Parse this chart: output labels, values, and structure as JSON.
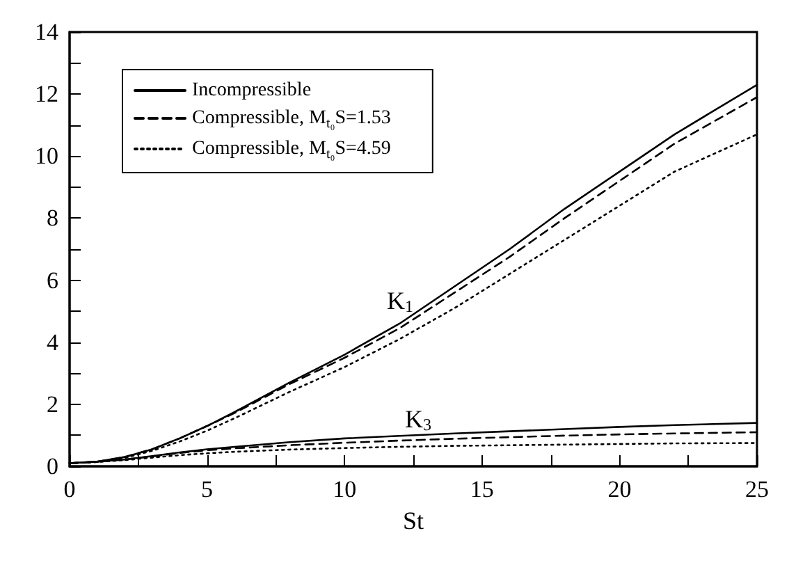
{
  "chart_data": {
    "type": "line",
    "xlabel": "St",
    "xlim": [
      0,
      25
    ],
    "ylim": [
      0,
      14
    ],
    "xticks": [
      0,
      {
        "value": 2.5,
        "label": null
      },
      5,
      {
        "value": 7.5,
        "label": null
      },
      10,
      {
        "value": 12.5,
        "label": null
      },
      15,
      {
        "value": 17.5,
        "label": null
      },
      20,
      {
        "value": 22.5,
        "label": null
      },
      25
    ],
    "yticks": [
      0,
      {
        "value": 1,
        "label": null
      },
      2,
      {
        "value": 3,
        "label": null
      },
      4,
      {
        "value": 5,
        "label": null
      },
      6,
      {
        "value": 7,
        "label": null
      },
      8,
      {
        "value": 9,
        "label": null
      },
      10,
      {
        "value": 11,
        "label": null
      },
      12,
      {
        "value": 13,
        "label": null
      },
      14
    ],
    "x": [
      0,
      1,
      2,
      3,
      4,
      5,
      6,
      8,
      10,
      12,
      14,
      16,
      18,
      20,
      22,
      25
    ],
    "grid": false,
    "legend": "top left",
    "marker": "none",
    "series": [
      {
        "name": "Incompressible",
        "color": "#000000",
        "line_style": "solid",
        "values": [
          0.1,
          0.15,
          0.3,
          0.55,
          0.9,
          1.3,
          1.75,
          2.7,
          3.6,
          4.6,
          5.8,
          7.0,
          8.3,
          9.5,
          10.7,
          12.3
        ]
      },
      {
        "name": "Compressible, M$_{t₀}$S=1.53",
        "color": "#000000",
        "line_style": "dashed",
        "values": [
          0.1,
          0.15,
          0.3,
          0.55,
          0.9,
          1.3,
          1.72,
          2.65,
          3.5,
          4.45,
          5.6,
          6.75,
          8.0,
          9.2,
          10.4,
          11.9
        ]
      },
      {
        "name": "Compressible, M$_{t₀}$S=4.59",
        "color": "#000000",
        "line_style": "dotted",
        "values": [
          0.1,
          0.14,
          0.27,
          0.5,
          0.8,
          1.15,
          1.55,
          2.4,
          3.2,
          4.1,
          5.1,
          6.2,
          7.3,
          8.4,
          9.5,
          10.7
        ]
      },
      {
        "color": "#000000",
        "line_style": "solid",
        "values": [
          0.1,
          0.15,
          0.22,
          0.33,
          0.45,
          0.55,
          0.63,
          0.78,
          0.9,
          0.98,
          1.06,
          1.13,
          1.2,
          1.27,
          1.33,
          1.4
        ]
      },
      {
        "color": "#000000",
        "line_style": "dashed",
        "values": [
          0.1,
          0.15,
          0.22,
          0.32,
          0.43,
          0.52,
          0.58,
          0.68,
          0.76,
          0.83,
          0.89,
          0.94,
          0.99,
          1.03,
          1.06,
          1.1
        ]
      },
      {
        "color": "#000000",
        "line_style": "dotted",
        "values": [
          0.1,
          0.14,
          0.2,
          0.28,
          0.36,
          0.42,
          0.47,
          0.54,
          0.59,
          0.63,
          0.66,
          0.68,
          0.7,
          0.72,
          0.74,
          0.75
        ]
      }
    ],
    "annotations": [
      "K$_{1}$",
      "K$_{3}$"
    ]
  }
}
